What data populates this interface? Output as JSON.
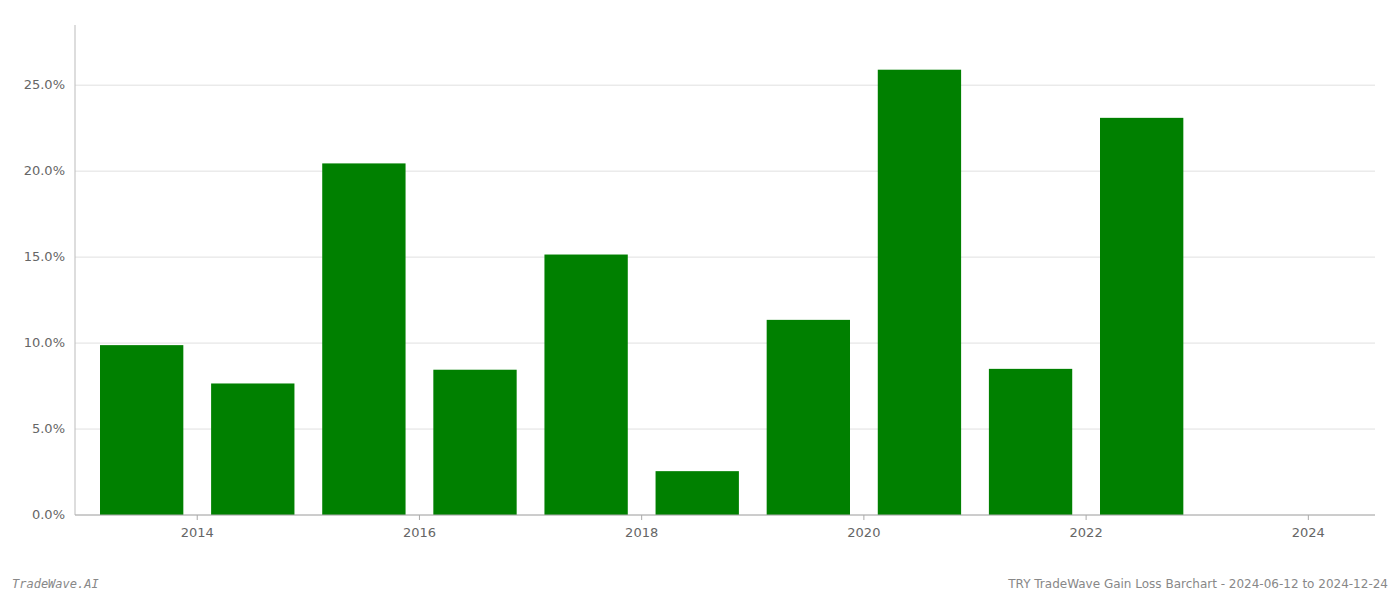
{
  "chart_data": {
    "type": "bar",
    "title": "TRY TradeWave Gain Loss Barchart - 2024-06-12 to 2024-12-24",
    "annotations": [
      "TradeWave.AI"
    ],
    "x": [
      2013,
      2014,
      2015,
      2016,
      2017,
      2018,
      2019,
      2020,
      2021,
      2022,
      2023
    ],
    "values": [
      0.0988,
      0.0765,
      0.2045,
      0.0845,
      0.1515,
      0.0255,
      0.1135,
      0.259,
      0.085,
      0.231,
      0.0
    ],
    "color": "#008000",
    "xlim": [
      2012.4,
      2024.1
    ],
    "xticks": [
      {
        "value": 2013.5,
        "label": "2014"
      },
      {
        "value": 2015.5,
        "label": "2016"
      },
      {
        "value": 2017.5,
        "label": "2018"
      },
      {
        "value": 2019.5,
        "label": "2020"
      },
      {
        "value": 2021.5,
        "label": "2022"
      },
      {
        "value": 2023.5,
        "label": "2024"
      }
    ],
    "ylim": [
      0,
      0.285
    ],
    "yticks": [
      {
        "value": 0.0,
        "label": "0.0%"
      },
      {
        "value": 0.05,
        "label": "5.0%"
      },
      {
        "value": 0.1,
        "label": "10.0%"
      },
      {
        "value": 0.15,
        "label": "15.0%"
      },
      {
        "value": 0.2,
        "label": "20.0%"
      },
      {
        "value": 0.25,
        "label": "25.0%"
      }
    ],
    "grid": true
  }
}
